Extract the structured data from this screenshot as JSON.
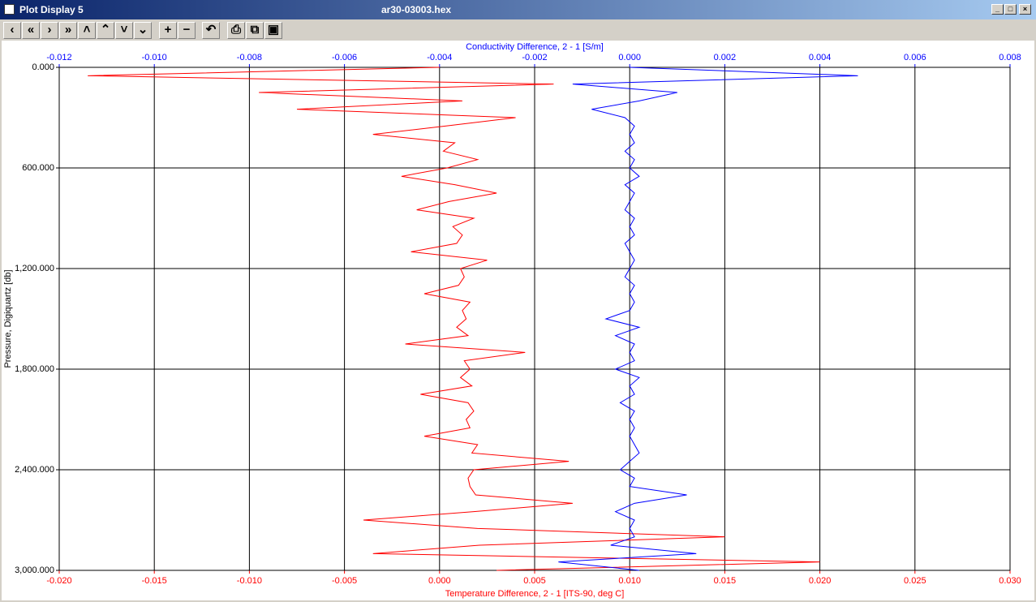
{
  "window": {
    "title": "Plot Display 5",
    "file": "ar30-03003.hex"
  },
  "chart_data": {
    "type": "line",
    "xlabel": "Temperature Difference, 2 - 1 [ITS-90, deg C]",
    "x2label": "Conductivity Difference, 2 - 1 [S/m]",
    "ylabel": "Pressure, Digiquartz [db]",
    "xlim": [
      -0.02,
      0.03
    ],
    "xticks": [
      {
        "value": -0.02,
        "label": "-0.020"
      },
      -0.015,
      {
        "value": -0.01,
        "label": "-0.010"
      },
      -0.005,
      {
        "value": 0,
        "label": "0.000"
      },
      0.005,
      {
        "value": 0.01,
        "label": "0.010"
      },
      0.015,
      {
        "value": 0.02,
        "label": "0.020"
      },
      0.025,
      {
        "value": 0.03,
        "label": "0.030"
      }
    ],
    "x2lim": [
      -0.012,
      0.008
    ],
    "x2ticks": [
      -0.012,
      {
        "value": -0.01,
        "label": "-0.010"
      },
      -0.008,
      -0.006,
      -0.004,
      -0.002,
      {
        "value": 0,
        "label": "0.000"
      },
      0.002,
      0.004,
      0.006,
      0.008
    ],
    "ylim": [
      0,
      3000
    ],
    "yticks": [
      {
        "value": 0,
        "label": "0.000"
      },
      {
        "value": 600,
        "label": "600.000"
      },
      {
        "value": 1200,
        "label": "1,200.000"
      },
      {
        "value": 1800,
        "label": "1,800.000"
      },
      {
        "value": 2400,
        "label": "2,400.000"
      },
      {
        "value": 3000,
        "label": "3,000.000"
      }
    ],
    "grid": true,
    "pressure": [
      0,
      50,
      100,
      150,
      200,
      250,
      300,
      350,
      400,
      450,
      500,
      550,
      600,
      650,
      700,
      750,
      800,
      850,
      900,
      950,
      1000,
      1050,
      1100,
      1150,
      1200,
      1250,
      1300,
      1350,
      1400,
      1450,
      1500,
      1550,
      1600,
      1650,
      1700,
      1750,
      1800,
      1850,
      1900,
      1950,
      2000,
      2050,
      2100,
      2150,
      2200,
      2250,
      2300,
      2350,
      2400,
      2450,
      2500,
      2550,
      2600,
      2650,
      2700,
      2750,
      2800,
      2850,
      2900,
      2950,
      3000
    ],
    "series": [
      {
        "color": "#ff0000",
        "axis": "x",
        "values": [
          0.0,
          -0.0185,
          0.006,
          -0.0095,
          0.0012,
          -0.0075,
          0.004,
          0.0003,
          -0.0035,
          0.0008,
          0.0002,
          0.002,
          0.0004,
          -0.002,
          0.0008,
          0.003,
          0.0005,
          -0.0012,
          0.0018,
          0.0007,
          0.0012,
          0.0009,
          -0.0015,
          0.0025,
          0.0011,
          0.0013,
          0.001,
          -0.0008,
          0.0016,
          0.0012,
          0.0014,
          0.0009,
          0.0015,
          -0.0018,
          0.0045,
          0.0013,
          0.0016,
          0.0011,
          0.0017,
          -0.001,
          0.0015,
          0.0018,
          0.0014,
          0.0016,
          -0.0008,
          0.002,
          0.0017,
          0.0068,
          0.0018,
          0.0015,
          0.0016,
          0.0019,
          0.007,
          0.0018,
          -0.004,
          0.002,
          0.015,
          0.0021,
          -0.0035,
          0.02,
          0.003
        ]
      },
      {
        "color": "#0000ff",
        "axis": "x2",
        "values": [
          0.0,
          0.0048,
          -0.0012,
          0.001,
          0.0002,
          -0.0008,
          -0.0001,
          0.0001,
          0.0,
          0.0001,
          -0.0001,
          0.0001,
          0.0,
          0.0002,
          -0.0001,
          0.0001,
          0.0,
          -0.0001,
          0.0001,
          0.0,
          0.0001,
          -0.0001,
          0.0,
          0.0001,
          0.0,
          -0.0001,
          0.0001,
          0.0,
          0.0001,
          0.0,
          -0.0005,
          0.0002,
          -0.0003,
          0.0001,
          0.0,
          0.0001,
          -0.0003,
          0.0002,
          0.0,
          0.0001,
          -0.0002,
          0.0001,
          0.0,
          0.0001,
          0.0,
          0.0001,
          0.0002,
          0.0,
          -0.0002,
          0.0001,
          0.0,
          0.0012,
          0.0001,
          -0.0003,
          0.0001,
          0.0,
          0.0001,
          -0.0004,
          0.0014,
          -0.0015,
          0.0002
        ]
      }
    ]
  }
}
